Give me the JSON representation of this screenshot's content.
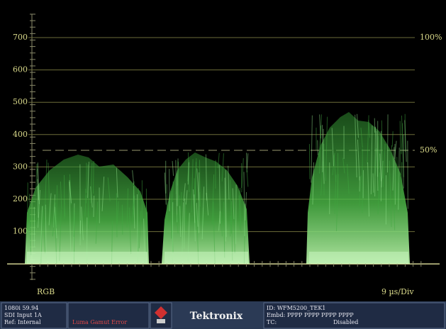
{
  "graticule": {
    "labels": [
      "700",
      "600",
      "500",
      "400",
      "300",
      "200",
      "100"
    ],
    "right_labels": [
      "100%",
      "50%"
    ]
  },
  "footer": {
    "left": "RGB",
    "right": "9 µs/Div"
  },
  "status": {
    "format": "1080i 59.94",
    "input": "SDI Input 1A",
    "ref": "Ref: Internal",
    "error": "Luma Gamut Error",
    "brand": "Tektronix",
    "id": "ID: WFM5200_TEK1",
    "embd": "Embd: PPPP PPPP PPPP PPPP",
    "tc": "TC:",
    "tc_value": "Disabled"
  }
}
